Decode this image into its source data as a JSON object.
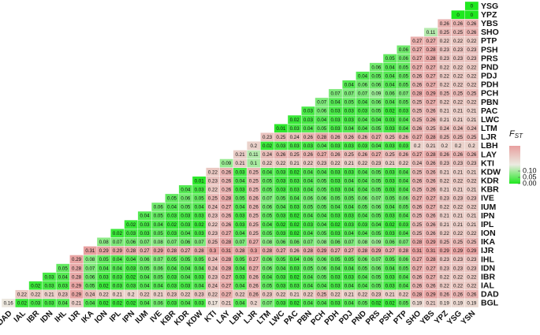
{
  "chart_data": {
    "type": "heatmap",
    "x": [
      "DAD",
      "IAL",
      "IBR",
      "IDN",
      "IHL",
      "IJR",
      "IKA",
      "ION",
      "IPL",
      "IPN",
      "IUM",
      "IVE",
      "KBR",
      "KDR",
      "KDW",
      "KTI",
      "LAY",
      "LBH",
      "LJR",
      "LTM",
      "LWC",
      "PAC",
      "PBN",
      "PCH",
      "PDH",
      "PDJ",
      "PND",
      "PRS",
      "PSH",
      "PTP",
      "SHO",
      "YBS",
      "YPZ",
      "YSG",
      "YSN"
    ],
    "y": [
      "BGL",
      "DAD",
      "IAL",
      "IBR",
      "IDN",
      "IHL",
      "IJR",
      "IKA",
      "ION",
      "IPL",
      "IPN",
      "IUM",
      "IVE",
      "KBR",
      "KDR",
      "KDW",
      "KTI",
      "LAY",
      "LBH",
      "LJR",
      "LTM",
      "LWC",
      "PAC",
      "PBN",
      "PCH",
      "PDH",
      "PDJ",
      "PND",
      "PRS",
      "PSH",
      "PTP",
      "SHO",
      "YBS",
      "YPZ",
      "YSG"
    ],
    "values": [
      [
        0.16,
        0.02,
        0.03,
        0.03,
        0.04,
        0.21,
        0.04,
        0.02,
        0.02,
        0.02,
        0.04,
        0.06,
        0.03,
        0.04,
        0.03,
        0.17,
        0.21,
        0.04,
        0.2,
        0.07,
        0.03,
        0.02,
        0.04,
        0.04,
        0.03,
        0.04,
        0.05,
        0.02,
        0.02,
        0.05,
        0.19,
        0.21,
        0.19,
        0.19,
        0.19
      ],
      [
        0.22,
        0.22,
        0.21,
        0.23,
        0.29,
        0.24,
        0.22,
        0.21,
        0.2,
        0.22,
        0.21,
        0.23,
        0.22,
        0.23,
        0.22,
        0.27,
        0.22,
        0.26,
        0.23,
        0.22,
        0.21,
        0.22,
        0.25,
        0.22,
        0.21,
        0.22,
        0.23,
        0.21,
        0.22,
        0.28,
        0.29,
        0.26,
        0.26,
        0.26
      ],
      [
        0.02,
        0.03,
        0.03,
        0.29,
        0.05,
        0.02,
        0.03,
        0.03,
        0.04,
        0.04,
        0.03,
        0.03,
        0.04,
        0.24,
        0.27,
        0.04,
        0.26,
        0.05,
        0.03,
        0.03,
        0.04,
        0.04,
        0.03,
        0.04,
        0.04,
        0.05,
        0.03,
        0.04,
        0.26,
        0.26,
        0.22,
        0.22,
        0.22
      ],
      [
        0.03,
        0.04,
        0.28,
        0.06,
        0.03,
        0.03,
        0.02,
        0.04,
        0.05,
        0.03,
        0.04,
        0.03,
        0.23,
        0.27,
        0.03,
        0.26,
        0.04,
        0.03,
        0.02,
        0.04,
        0.05,
        0.03,
        0.03,
        0.04,
        0.05,
        0.03,
        0.04,
        0.26,
        0.27,
        0.22,
        0.22,
        0.22
      ],
      [
        0.05,
        0.28,
        0.07,
        0.04,
        0.04,
        0.03,
        0.05,
        0.06,
        0.04,
        0.04,
        0.04,
        0.24,
        0.28,
        0.04,
        0.27,
        0.06,
        0.04,
        0.03,
        0.05,
        0.06,
        0.04,
        0.04,
        0.05,
        0.06,
        0.04,
        0.05,
        0.27,
        0.27,
        0.23,
        0.23,
        0.23
      ],
      [
        0.29,
        0.08,
        0.05,
        0.04,
        0.04,
        0.06,
        0.07,
        0.05,
        0.05,
        0.05,
        0.24,
        0.28,
        0.05,
        0.27,
        0.06,
        0.05,
        0.04,
        0.06,
        0.06,
        0.05,
        0.05,
        0.06,
        0.07,
        0.05,
        0.06,
        0.27,
        0.28,
        0.23,
        0.23,
        0.23
      ],
      [
        0.31,
        0.29,
        0.29,
        0.28,
        0.27,
        0.29,
        0.28,
        0.27,
        0.28,
        0.3,
        0.31,
        0.28,
        0.3,
        0.28,
        0.27,
        0.26,
        0.28,
        0.29,
        0.27,
        0.27,
        0.28,
        0.29,
        0.27,
        0.28,
        0.31,
        0.31,
        0.29,
        0.29,
        0.29
      ],
      [
        0.08,
        0.07,
        0.06,
        0.07,
        0.08,
        0.07,
        0.06,
        0.07,
        0.25,
        0.28,
        0.07,
        0.27,
        0.08,
        0.06,
        0.06,
        0.07,
        0.08,
        0.06,
        0.07,
        0.08,
        0.09,
        0.06,
        0.07,
        0.28,
        0.29,
        0.25,
        0.25,
        0.25
      ],
      [
        0.02,
        0.03,
        0.03,
        0.05,
        0.03,
        0.04,
        0.03,
        0.23,
        0.27,
        0.04,
        0.25,
        0.05,
        0.03,
        0.02,
        0.04,
        0.05,
        0.03,
        0.04,
        0.04,
        0.05,
        0.03,
        0.04,
        0.25,
        0.26,
        0.22,
        0.22,
        0.22
      ],
      [
        0.02,
        0.03,
        0.04,
        0.02,
        0.03,
        0.02,
        0.22,
        0.26,
        0.03,
        0.25,
        0.04,
        0.02,
        0.02,
        0.03,
        0.04,
        0.02,
        0.03,
        0.03,
        0.04,
        0.02,
        0.03,
        0.25,
        0.26,
        0.21,
        0.21,
        0.21
      ],
      [
        0.04,
        0.05,
        0.03,
        0.03,
        0.03,
        0.23,
        0.26,
        0.03,
        0.25,
        0.05,
        0.03,
        0.02,
        0.04,
        0.04,
        0.03,
        0.03,
        0.04,
        0.05,
        0.03,
        0.04,
        0.25,
        0.26,
        0.21,
        0.21,
        0.21
      ],
      [
        0.06,
        0.04,
        0.05,
        0.04,
        0.24,
        0.27,
        0.04,
        0.26,
        0.06,
        0.04,
        0.03,
        0.05,
        0.05,
        0.04,
        0.04,
        0.05,
        0.06,
        0.04,
        0.05,
        0.26,
        0.27,
        0.22,
        0.22,
        0.22
      ],
      [
        0.05,
        0.06,
        0.05,
        0.25,
        0.28,
        0.05,
        0.26,
        0.07,
        0.05,
        0.04,
        0.06,
        0.06,
        0.05,
        0.05,
        0.06,
        0.07,
        0.05,
        0.06,
        0.27,
        0.27,
        0.23,
        0.23,
        0.23
      ],
      [
        0.04,
        0.03,
        0.22,
        0.26,
        0.03,
        0.25,
        0.05,
        0.03,
        0.03,
        0.04,
        0.05,
        0.03,
        0.04,
        0.04,
        0.05,
        0.03,
        0.04,
        0.25,
        0.26,
        0.21,
        0.21,
        0.21
      ],
      [
        0.01,
        0.23,
        0.26,
        0.04,
        0.25,
        0.05,
        0.03,
        0.03,
        0.04,
        0.05,
        0.03,
        0.04,
        0.04,
        0.05,
        0.03,
        0.04,
        0.26,
        0.26,
        0.22,
        0.22,
        0.22
      ],
      [
        0.22,
        0.26,
        0.03,
        0.25,
        0.04,
        0.03,
        0.02,
        0.04,
        0.04,
        0.03,
        0.03,
        0.04,
        0.05,
        0.03,
        0.04,
        0.25,
        0.26,
        0.21,
        0.21,
        0.21
      ],
      [
        0.09,
        0.21,
        0.1,
        0.22,
        0.22,
        0.21,
        0.22,
        0.23,
        0.22,
        0.21,
        0.22,
        0.23,
        0.21,
        0.22,
        0.24,
        0.26,
        0.23,
        0.23,
        0.23
      ],
      [
        0.21,
        0.11,
        0.24,
        0.26,
        0.25,
        0.26,
        0.27,
        0.26,
        0.25,
        0.26,
        0.27,
        0.25,
        0.26,
        0.27,
        0.28,
        0.26,
        0.26,
        0.26
      ],
      [
        0.2,
        0.02,
        0.03,
        0.03,
        0.03,
        0.04,
        0.03,
        0.03,
        0.03,
        0.04,
        0.03,
        0.03,
        0.2,
        0.21,
        0.2,
        0.2,
        0.2
      ],
      [
        0.23,
        0.25,
        0.24,
        0.26,
        0.28,
        0.26,
        0.26,
        0.26,
        0.27,
        0.25,
        0.26,
        0.27,
        0.28,
        0.25,
        0.25,
        0.25
      ],
      [
        0.01,
        0.03,
        0.04,
        0.05,
        0.03,
        0.04,
        0.04,
        0.05,
        0.03,
        0.04,
        0.26,
        0.25,
        0.24,
        0.24,
        0.24
      ],
      [
        0.02,
        0.03,
        0.04,
        0.03,
        0.03,
        0.04,
        0.04,
        0.03,
        0.04,
        0.25,
        0.26,
        0.21,
        0.21,
        0.21
      ],
      [
        0.03,
        0.06,
        0.03,
        0.03,
        0.03,
        0.05,
        0.02,
        0.03,
        0.25,
        0.26,
        0.21,
        0.21,
        0.21
      ],
      [
        0.07,
        0.04,
        0.05,
        0.04,
        0.06,
        0.04,
        0.05,
        0.25,
        0.27,
        0.22,
        0.22,
        0.22
      ],
      [
        0.07,
        0.07,
        0.07,
        0.09,
        0.06,
        0.07,
        0.28,
        0.29,
        0.25,
        0.25,
        0.25
      ],
      [
        0.04,
        0.06,
        0.06,
        0.04,
        0.05,
        0.26,
        0.27,
        0.22,
        0.22,
        0.22
      ],
      [
        0.04,
        0.05,
        0.04,
        0.05,
        0.26,
        0.27,
        0.22,
        0.22,
        0.22
      ],
      [
        0.06,
        0.04,
        0.05,
        0.27,
        0.27,
        0.22,
        0.22,
        0.22
      ],
      [
        0.05,
        0.06,
        0.27,
        0.28,
        0.23,
        0.23,
        0.23
      ],
      [
        0.06,
        0.27,
        0.28,
        0.23,
        0.23,
        0.23
      ],
      [
        0.27,
        0.27,
        0.22,
        0.22,
        0.22
      ],
      [
        0.11,
        0.25,
        0.25,
        0.26
      ],
      [
        0.26,
        0.26,
        0.26
      ],
      [
        0,
        0
      ],
      [
        0
      ]
    ],
    "colors": [
      "#1fe81f",
      "#ebebe1",
      "#e89f9f"
    ],
    "colorbar_title": {
      "main": "F",
      "sub": "ST"
    },
    "zlim": [
      0,
      0.3
    ],
    "zticks": [
      {
        "value": 0,
        "label": "0.00"
      },
      {
        "value": 0.05,
        "label": "0.05"
      },
      {
        "value": 0.1,
        "label": "0.10"
      }
    ]
  }
}
